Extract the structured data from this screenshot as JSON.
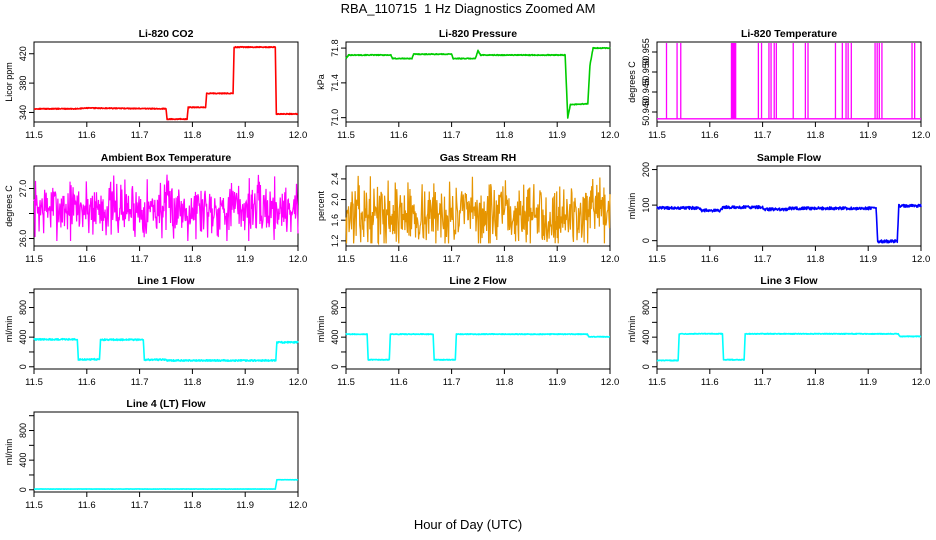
{
  "page": {
    "title": "RBA_110715  1 Hz Diagnostics Zoomed AM",
    "xlabel": "Hour of Day (UTC)"
  },
  "chart_data": [
    {
      "type": "line",
      "title": "Li-820 CO2",
      "ylabel": "Licor ppm",
      "color": "#ff0000",
      "xlim": [
        11.5,
        12.0
      ],
      "xticks": [
        11.5,
        11.6,
        11.7,
        11.8,
        11.9,
        12.0
      ],
      "xtick_labels": [
        "11.5",
        "11.6",
        "11.7",
        "11.8",
        "11.9",
        "12.0"
      ],
      "ylim": [
        327,
        436
      ],
      "yticks": [
        340,
        380,
        420
      ],
      "ytick_labels": [
        "340",
        "380",
        "420"
      ],
      "x": [
        11.5,
        11.58,
        11.6,
        11.75,
        11.752,
        11.79,
        11.792,
        11.825,
        11.827,
        11.877,
        11.879,
        11.957,
        11.959,
        12.0
      ],
      "y": [
        345,
        345,
        346,
        345,
        331,
        331,
        347,
        347,
        366,
        366,
        429,
        429,
        338,
        338
      ],
      "noise": 0.6
    },
    {
      "type": "line",
      "title": "Li-820 Pressure",
      "ylabel": "kPa",
      "color": "#00cc00",
      "xlim": [
        11.5,
        12.0
      ],
      "xticks": [
        11.5,
        11.6,
        11.7,
        11.8,
        11.9,
        12.0
      ],
      "xtick_labels": [
        "11.5",
        "11.6",
        "11.7",
        "11.8",
        "11.9",
        "12.0"
      ],
      "ylim": [
        70.95,
        71.87
      ],
      "yticks": [
        71.0,
        71.4,
        71.8
      ],
      "ytick_labels": [
        "71.0",
        "71.4",
        "71.8"
      ],
      "x": [
        11.5,
        11.505,
        11.585,
        11.588,
        11.625,
        11.628,
        11.7,
        11.703,
        11.745,
        11.75,
        11.755,
        11.82,
        11.915,
        11.92,
        11.925,
        11.958,
        11.962,
        11.968,
        11.99,
        12.0
      ],
      "y": [
        71.68,
        71.72,
        71.72,
        71.68,
        71.68,
        71.73,
        71.73,
        71.68,
        71.68,
        71.77,
        71.72,
        71.72,
        71.72,
        71.0,
        71.15,
        71.16,
        71.6,
        71.8,
        71.8,
        71.8
      ],
      "noise": 0.005
    },
    {
      "type": "spikes",
      "title": "Li-820 Temperature",
      "ylabel": "degrees C",
      "color": "#ff00ff",
      "xlim": [
        11.5,
        12.0
      ],
      "xticks": [
        11.5,
        11.6,
        11.7,
        11.8,
        11.9,
        12.0
      ],
      "xtick_labels": [
        "11.5",
        "11.6",
        "11.7",
        "11.8",
        "11.9",
        "12.0"
      ],
      "ylim": [
        50.9375,
        50.9575
      ],
      "yticks": [
        50.94,
        50.945,
        50.95,
        50.955
      ],
      "ytick_labels": [
        "50.940",
        "50.945",
        "50.950",
        "50.955"
      ],
      "base": 50.9383,
      "peak": 50.9575,
      "spike_x": [
        11.518,
        11.538,
        11.545,
        11.641,
        11.643,
        11.645,
        11.647,
        11.649,
        11.692,
        11.698,
        11.712,
        11.716,
        11.722,
        11.726,
        11.758,
        11.781,
        11.786,
        11.838,
        11.851,
        11.858,
        11.862,
        11.868,
        11.913,
        11.917,
        11.921,
        11.926,
        11.983,
        11.988
      ]
    },
    {
      "type": "noise",
      "title": "Ambient Box Temperature",
      "ylabel": "degrees C",
      "color": "#ff00ff",
      "xlim": [
        11.5,
        12.0
      ],
      "xticks": [
        11.5,
        11.6,
        11.7,
        11.8,
        11.9,
        12.0
      ],
      "xtick_labels": [
        "11.5",
        "11.6",
        "11.7",
        "11.8",
        "11.9",
        "12.0"
      ],
      "ylim": [
        25.85,
        27.45
      ],
      "yticks": [
        26.0,
        26.5,
        27.0
      ],
      "ytick_labels": [
        "26.0",
        "",
        "27.0"
      ],
      "mean": 26.6,
      "spread": 0.28,
      "min": 25.95,
      "max": 27.38,
      "seed": 7
    },
    {
      "type": "noise",
      "title": "Gas Stream RH",
      "ylabel": "percent",
      "color": "#e69500",
      "xlim": [
        11.5,
        12.0
      ],
      "xticks": [
        11.5,
        11.6,
        11.7,
        11.8,
        11.9,
        12.0
      ],
      "xtick_labels": [
        "11.5",
        "11.6",
        "11.7",
        "11.8",
        "11.9",
        "12.0"
      ],
      "ylim": [
        1.1,
        2.65
      ],
      "yticks": [
        1.2,
        1.6,
        2.0,
        2.4
      ],
      "ytick_labels": [
        "1.2",
        "1.6",
        "2.0",
        "2.4"
      ],
      "mean": 1.7,
      "spread": 0.3,
      "min": 1.15,
      "max": 2.6,
      "seed": 13
    },
    {
      "type": "line",
      "title": "Sample Flow",
      "ylabel": "ml/min",
      "color": "#0000ff",
      "xlim": [
        11.5,
        12.0
      ],
      "xticks": [
        11.5,
        11.6,
        11.7,
        11.8,
        11.9,
        12.0
      ],
      "xtick_labels": [
        "11.5",
        "11.6",
        "11.7",
        "11.8",
        "11.9",
        "12.0"
      ],
      "ylim": [
        -15,
        210
      ],
      "yticks": [
        0,
        100,
        200
      ],
      "ytick_labels": [
        "0",
        "100",
        "200"
      ],
      "x": [
        11.5,
        11.58,
        11.585,
        11.62,
        11.625,
        11.7,
        11.705,
        11.745,
        11.75,
        11.915,
        11.918,
        11.955,
        11.958,
        12.0
      ],
      "y": [
        92,
        92,
        85,
        85,
        94,
        94,
        88,
        88,
        91,
        91,
        -2,
        -2,
        98,
        98
      ],
      "noise": 4
    },
    {
      "type": "line",
      "title": "Line 1 Flow",
      "ylabel": "ml/min",
      "color": "#00ffff",
      "xlim": [
        11.5,
        12.0
      ],
      "xticks": [
        11.5,
        11.6,
        11.7,
        11.8,
        11.9,
        12.0
      ],
      "xtick_labels": [
        "11.5",
        "11.6",
        "11.7",
        "11.8",
        "11.9",
        "12.0"
      ],
      "ylim": [
        -30,
        1050
      ],
      "yticks": [
        0,
        200,
        400,
        600,
        800,
        1000
      ],
      "ytick_labels": [
        "0",
        "",
        "400",
        "",
        "800",
        ""
      ],
      "x": [
        11.5,
        11.582,
        11.584,
        11.624,
        11.626,
        11.707,
        11.709,
        11.75,
        11.752,
        11.958,
        11.96,
        12.0
      ],
      "y": [
        370,
        370,
        100,
        100,
        365,
        365,
        95,
        95,
        85,
        85,
        330,
        330
      ],
      "noise": 10
    },
    {
      "type": "line",
      "title": "Line 2 Flow",
      "ylabel": "ml/min",
      "color": "#00ffff",
      "xlim": [
        11.5,
        12.0
      ],
      "xticks": [
        11.5,
        11.6,
        11.7,
        11.8,
        11.9,
        12.0
      ],
      "xtick_labels": [
        "11.5",
        "11.6",
        "11.7",
        "11.8",
        "11.9",
        "12.0"
      ],
      "ylim": [
        -30,
        1050
      ],
      "yticks": [
        0,
        200,
        400,
        600,
        800,
        1000
      ],
      "ytick_labels": [
        "0",
        "",
        "400",
        "",
        "800",
        ""
      ],
      "x": [
        11.5,
        11.54,
        11.542,
        11.582,
        11.584,
        11.665,
        11.667,
        11.707,
        11.709,
        11.957,
        11.96,
        12.0
      ],
      "y": [
        440,
        440,
        95,
        95,
        440,
        440,
        95,
        95,
        440,
        440,
        405,
        405
      ],
      "noise": 5
    },
    {
      "type": "line",
      "title": "Line 3 Flow",
      "ylabel": "ml/min",
      "color": "#00ffff",
      "xlim": [
        11.5,
        12.0
      ],
      "xticks": [
        11.5,
        11.6,
        11.7,
        11.8,
        11.9,
        12.0
      ],
      "xtick_labels": [
        "11.5",
        "11.6",
        "11.7",
        "11.8",
        "11.9",
        "12.0"
      ],
      "ylim": [
        -30,
        1050
      ],
      "yticks": [
        0,
        200,
        400,
        600,
        800,
        1000
      ],
      "ytick_labels": [
        "0",
        "",
        "400",
        "",
        "800",
        ""
      ],
      "x": [
        11.5,
        11.54,
        11.542,
        11.624,
        11.626,
        11.665,
        11.667,
        11.957,
        11.96,
        12.0
      ],
      "y": [
        85,
        85,
        445,
        445,
        95,
        95,
        445,
        445,
        410,
        410
      ],
      "noise": 5
    },
    {
      "type": "line",
      "title": "Line 4 (LT) Flow",
      "ylabel": "ml/min",
      "color": "#00ffff",
      "xlim": [
        11.5,
        12.0
      ],
      "xticks": [
        11.5,
        11.6,
        11.7,
        11.8,
        11.9,
        12.0
      ],
      "xtick_labels": [
        "11.5",
        "11.6",
        "11.7",
        "11.8",
        "11.9",
        "12.0"
      ],
      "ylim": [
        -30,
        1050
      ],
      "yticks": [
        0,
        200,
        400,
        600,
        800,
        1000
      ],
      "ytick_labels": [
        "0",
        "",
        "400",
        "",
        "800",
        ""
      ],
      "x": [
        11.5,
        11.957,
        11.96,
        12.0
      ],
      "y": [
        10,
        10,
        135,
        135
      ],
      "noise": 2
    }
  ]
}
